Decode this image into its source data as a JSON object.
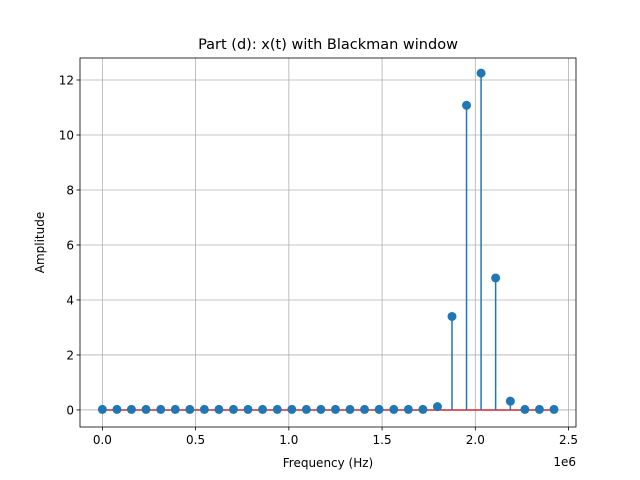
{
  "chart_data": {
    "type": "stem",
    "title": "Part (d): x(t) with Blackman window",
    "xlabel": "Frequency (Hz)",
    "ylabel": "Amplitude",
    "x_offset_label": "1e6",
    "x_scale": 1000000,
    "xlim": [
      -0.12,
      2.54
    ],
    "ylim": [
      -0.62,
      12.8
    ],
    "grid": true,
    "x_ticks": [
      0.0,
      0.5,
      1.0,
      1.5,
      2.0,
      2.5
    ],
    "x_tick_labels": [
      "0.0",
      "0.5",
      "1.0",
      "1.5",
      "2.0",
      "2.5"
    ],
    "y_ticks": [
      0,
      2,
      4,
      6,
      8,
      10,
      12
    ],
    "y_tick_labels": [
      "0",
      "2",
      "4",
      "6",
      "8",
      "10",
      "12"
    ],
    "colors": {
      "stem": "#1f77b4",
      "marker": "#1f77b4",
      "baseline": "#d62728",
      "grid": "#b0b0b0"
    },
    "x": [
      0.0,
      0.078,
      0.156,
      0.234,
      0.313,
      0.391,
      0.469,
      0.547,
      0.625,
      0.703,
      0.781,
      0.859,
      0.938,
      1.016,
      1.094,
      1.172,
      1.25,
      1.328,
      1.406,
      1.484,
      1.563,
      1.641,
      1.719,
      1.797,
      1.875,
      1.953,
      2.031,
      2.109,
      2.188,
      2.266,
      2.344,
      2.422
    ],
    "values": [
      0.02,
      0.02,
      0.02,
      0.02,
      0.02,
      0.02,
      0.02,
      0.02,
      0.02,
      0.02,
      0.02,
      0.02,
      0.02,
      0.02,
      0.02,
      0.02,
      0.02,
      0.02,
      0.02,
      0.02,
      0.02,
      0.02,
      0.02,
      0.12,
      3.4,
      11.08,
      12.25,
      4.8,
      0.32,
      0.02,
      0.02,
      0.02
    ]
  }
}
